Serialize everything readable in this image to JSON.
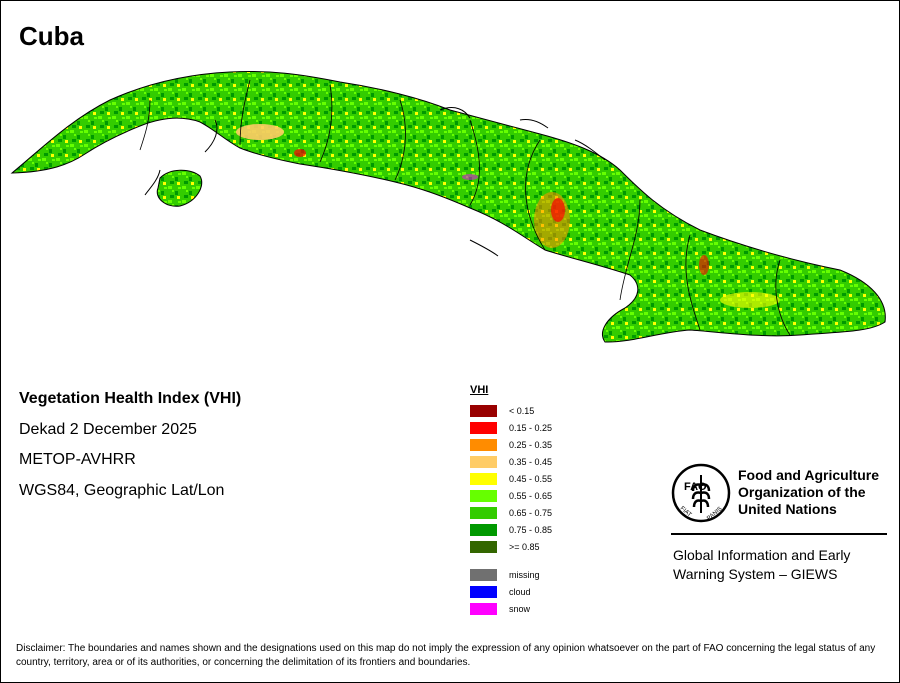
{
  "title": "Cuba",
  "info": {
    "index_name": "Vegetation Health Index (VHI)",
    "period": "Dekad 2 December 2025",
    "sensor": "METOP-AVHRR",
    "projection": "WGS84, Geographic Lat/Lon"
  },
  "legend": {
    "title": "VHI",
    "classes": [
      {
        "label": "< 0.15",
        "color": "#990000"
      },
      {
        "label": "0.15 - 0.25",
        "color": "#ff0000"
      },
      {
        "label": "0.25 - 0.35",
        "color": "#ff8c00"
      },
      {
        "label": "0.35 - 0.45",
        "color": "#ffcc66"
      },
      {
        "label": "0.45 - 0.55",
        "color": "#ffff00"
      },
      {
        "label": "0.55 - 0.65",
        "color": "#66ff00"
      },
      {
        "label": "0.65 - 0.75",
        "color": "#33cc00"
      },
      {
        "label": "0.75 - 0.85",
        "color": "#009900"
      },
      {
        "label": ">= 0.85",
        "color": "#336600"
      }
    ],
    "special": [
      {
        "label": "missing",
        "color": "#707070"
      },
      {
        "label": "cloud",
        "color": "#0000ff"
      },
      {
        "label": "snow",
        "color": "#ff00ff"
      }
    ]
  },
  "fao": {
    "logo_letters": "FAO",
    "logo_motto_left": "FIAT",
    "logo_motto_right": "PANIS",
    "name_line1": "Food and Agriculture",
    "name_line2": "Organization of the",
    "name_line3": "United Nations",
    "giews_line1": "Global Information and Early",
    "giews_line2": "Warning System – GIEWS"
  },
  "disclaimer": "Disclaimer: The boundaries and names shown and the designations used on this map do not imply the expression of any opinion whatsoever on the part of FAO concerning the legal status of any country, territory, area or of its authorities, or concerning the delimitation of its frontiers and boundaries."
}
